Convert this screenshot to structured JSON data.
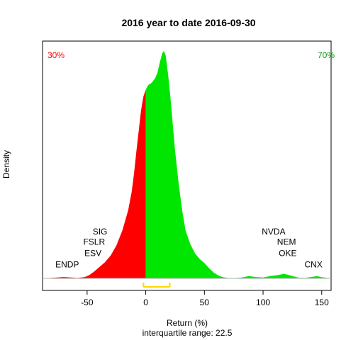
{
  "chart_data": {
    "type": "area",
    "title": "2016  year to date 2016-09-30",
    "xlabel": "Return (%)",
    "ylabel": "Density",
    "footnote": "interquartile range: 22.5",
    "xlim": [
      -88,
      158
    ],
    "ylim": [
      0,
      1
    ],
    "x_ticks": [
      -50,
      0,
      50,
      100,
      150
    ],
    "split_at": 0,
    "left_pct_label": "30%",
    "right_pct_label": "70%",
    "colors": {
      "below": "#ff0000",
      "above": "#00e600",
      "iqr": "#ffd700",
      "axis": "#000000",
      "baseline": "#b0b0b0"
    },
    "iqr_range": [
      -2,
      20.5
    ],
    "density": [
      [
        -88,
        0
      ],
      [
        -75,
        0.004
      ],
      [
        -70,
        0.006
      ],
      [
        -64,
        0.004
      ],
      [
        -58,
        0.002
      ],
      [
        -52,
        0.006
      ],
      [
        -48,
        0.015
      ],
      [
        -44,
        0.03
      ],
      [
        -40,
        0.048
      ],
      [
        -35,
        0.07
      ],
      [
        -30,
        0.1
      ],
      [
        -25,
        0.145
      ],
      [
        -20,
        0.21
      ],
      [
        -15,
        0.3
      ],
      [
        -12,
        0.38
      ],
      [
        -10,
        0.46
      ],
      [
        -8,
        0.56
      ],
      [
        -6,
        0.65
      ],
      [
        -4,
        0.74
      ],
      [
        -2,
        0.8
      ],
      [
        0,
        0.83
      ],
      [
        2,
        0.85
      ],
      [
        5,
        0.86
      ],
      [
        8,
        0.88
      ],
      [
        10,
        0.905
      ],
      [
        12,
        0.95
      ],
      [
        14,
        0.99
      ],
      [
        15.5,
        1.0
      ],
      [
        17,
        0.98
      ],
      [
        19,
        0.9
      ],
      [
        21,
        0.8
      ],
      [
        23,
        0.68
      ],
      [
        25,
        0.56
      ],
      [
        28,
        0.42
      ],
      [
        31,
        0.3
      ],
      [
        34,
        0.21
      ],
      [
        38,
        0.15
      ],
      [
        42,
        0.11
      ],
      [
        46,
        0.085
      ],
      [
        50,
        0.068
      ],
      [
        54,
        0.045
      ],
      [
        58,
        0.025
      ],
      [
        62,
        0.012
      ],
      [
        66,
        0.005
      ],
      [
        70,
        0.002
      ],
      [
        75,
        0.001
      ],
      [
        82,
        0.004
      ],
      [
        88,
        0.01
      ],
      [
        94,
        0.006
      ],
      [
        100,
        0.004
      ],
      [
        106,
        0.01
      ],
      [
        112,
        0.014
      ],
      [
        118,
        0.02
      ],
      [
        124,
        0.012
      ],
      [
        130,
        0.003
      ],
      [
        136,
        0.002
      ],
      [
        141,
        0.006
      ],
      [
        146,
        0.01
      ],
      [
        150,
        0.005
      ],
      [
        158,
        0
      ]
    ],
    "annotations": [
      {
        "label": "SIG",
        "x": -39,
        "y": 0.205
      },
      {
        "label": "FSLR",
        "x": -44,
        "y": 0.16
      },
      {
        "label": "ESV",
        "x": -45,
        "y": 0.11
      },
      {
        "label": "ENDP",
        "x": -67,
        "y": 0.06
      },
      {
        "label": "NVDA",
        "x": 109,
        "y": 0.205
      },
      {
        "label": "NEM",
        "x": 120,
        "y": 0.16
      },
      {
        "label": "OKE",
        "x": 121,
        "y": 0.11
      },
      {
        "label": "CNX",
        "x": 143,
        "y": 0.06
      }
    ]
  }
}
